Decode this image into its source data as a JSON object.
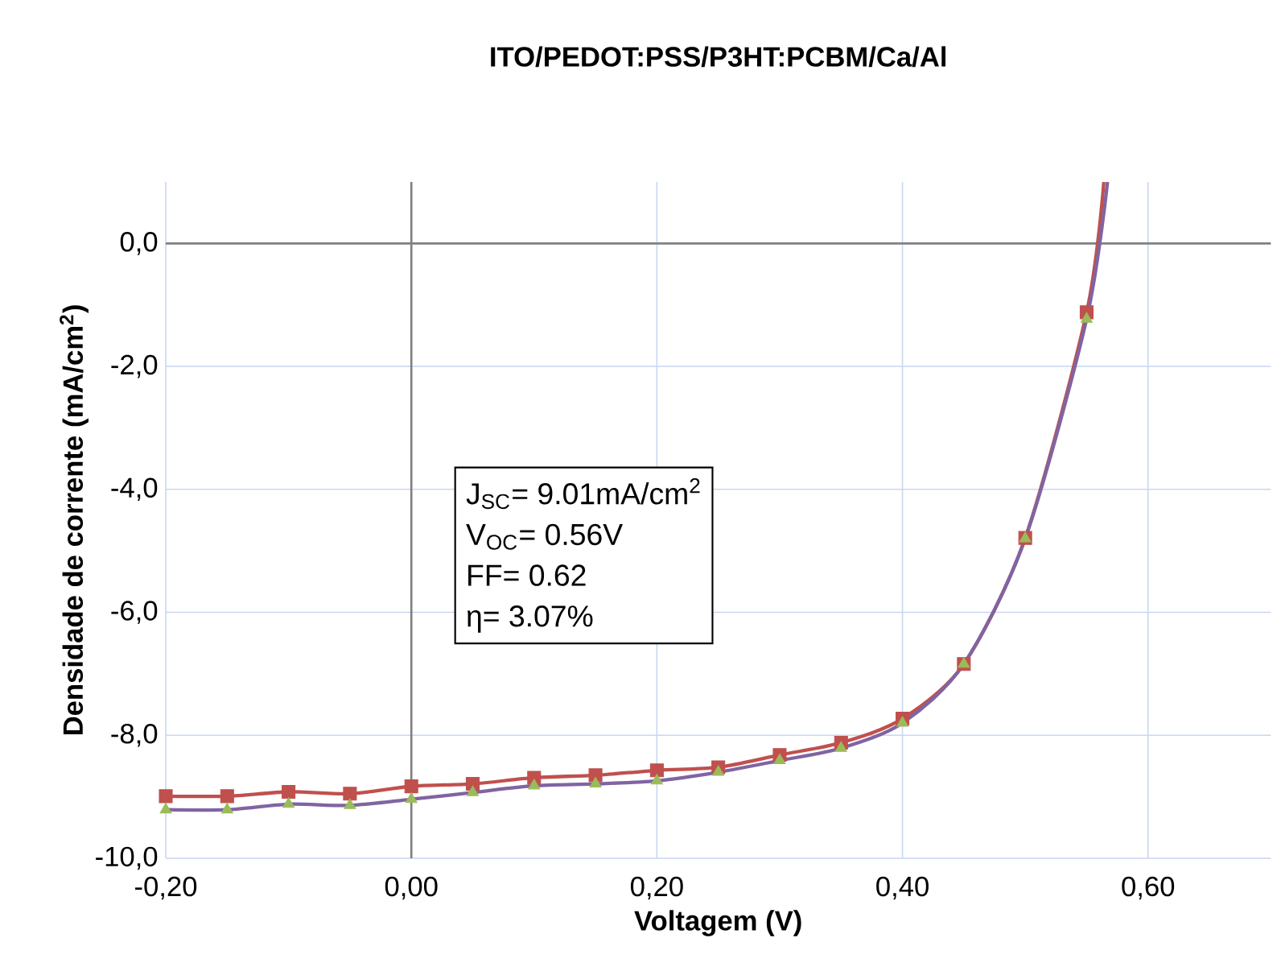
{
  "chart_data": {
    "type": "line",
    "title": "ITO/PEDOT:PSS/P3HT:PCBM/Ca/Al",
    "xlabel": "Voltagem (V)",
    "ylabel": "Densidade de corrente (mA/cm$^{2}$)",
    "annotations": [
      "J$_{SC}$= 9.01mA/cm$^{2}$",
      "V$_{OC}$= 0.56V",
      "FF= 0.62",
      "η= 3.07%"
    ],
    "series": [
      {
        "color": "#c0504d",
        "marker": "none",
        "x": [
          -0.2,
          -0.15,
          -0.1,
          -0.05,
          0.0,
          0.05,
          0.1,
          0.15,
          0.2,
          0.25,
          0.3,
          0.35,
          0.4,
          0.45,
          0.5,
          0.55,
          0.564
        ],
        "values": [
          -8.99,
          -8.99,
          -8.92,
          -8.95,
          -8.83,
          -8.79,
          -8.69,
          -8.65,
          -8.57,
          -8.52,
          -8.32,
          -8.12,
          -7.73,
          -6.84,
          -4.79,
          -1.12,
          1.0
        ]
      },
      {
        "type": "scatter",
        "color": "#c0504d",
        "marker": "square",
        "x": [
          -0.2,
          -0.15,
          -0.1,
          -0.05,
          0.0,
          0.05,
          0.1,
          0.15,
          0.2,
          0.25,
          0.3,
          0.35,
          0.4,
          0.45,
          0.5,
          0.55
        ],
        "values": [
          -8.99,
          -8.99,
          -8.92,
          -8.95,
          -8.83,
          -8.79,
          -8.69,
          -8.65,
          -8.57,
          -8.52,
          -8.32,
          -8.12,
          -7.73,
          -6.84,
          -4.79,
          -1.12
        ]
      },
      {
        "color": "#8064a2",
        "marker": "none",
        "x": [
          -0.2,
          -0.15,
          -0.1,
          -0.05,
          0.0,
          0.05,
          0.1,
          0.15,
          0.2,
          0.25,
          0.3,
          0.35,
          0.4,
          0.45,
          0.5,
          0.55,
          0.567
        ],
        "values": [
          -9.21,
          -9.21,
          -9.12,
          -9.14,
          -9.04,
          -8.93,
          -8.82,
          -8.79,
          -8.74,
          -8.6,
          -8.41,
          -8.21,
          -7.8,
          -6.84,
          -4.8,
          -1.23,
          1.0
        ]
      },
      {
        "type": "scatter",
        "color": "#9bbb59",
        "marker": "triangle",
        "x": [
          -0.2,
          -0.15,
          -0.1,
          -0.05,
          0.0,
          0.05,
          0.1,
          0.15,
          0.2,
          0.25,
          0.3,
          0.35,
          0.4,
          0.45,
          0.5,
          0.55
        ],
        "values": [
          -9.21,
          -9.21,
          -9.12,
          -9.14,
          -9.04,
          -8.93,
          -8.82,
          -8.79,
          -8.74,
          -8.6,
          -8.41,
          -8.21,
          -7.8,
          -6.84,
          -4.8,
          -1.23
        ]
      }
    ],
    "xlim": [
      -0.2,
      0.7
    ],
    "ylim": [
      -10,
      1
    ],
    "xticks": [
      {
        "value": -0.2,
        "label": "-0,20"
      },
      {
        "value": 0.0,
        "label": "0,00"
      },
      {
        "value": 0.2,
        "label": "0,20"
      },
      {
        "value": 0.4,
        "label": "0,40"
      },
      {
        "value": 0.6,
        "label": "0,60"
      }
    ],
    "yticks": [
      {
        "value": -10,
        "label": "-10,0"
      },
      {
        "value": -8,
        "label": "-8,0"
      },
      {
        "value": -6,
        "label": "-6,0"
      },
      {
        "value": -4,
        "label": "-4,0"
      },
      {
        "value": -2,
        "label": "-2,0"
      },
      {
        "value": 0,
        "label": "0,0"
      }
    ],
    "grid": true
  }
}
